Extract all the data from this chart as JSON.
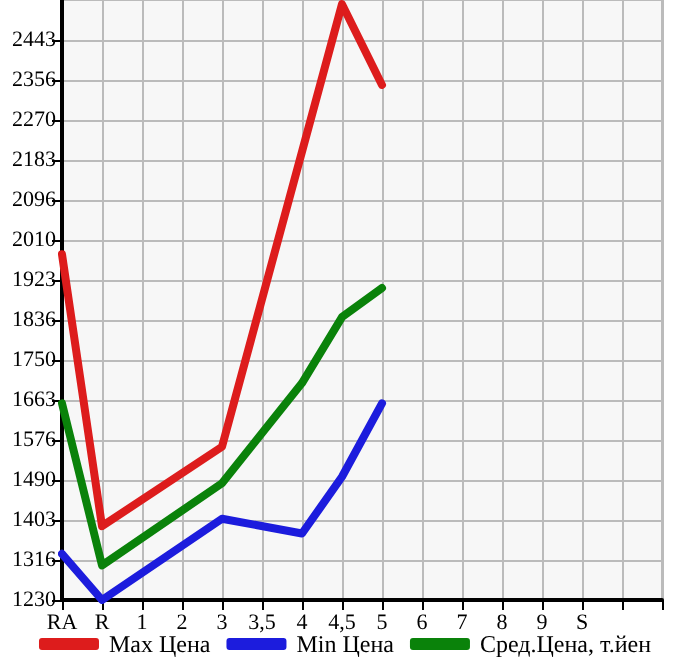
{
  "chart_data": {
    "type": "line",
    "categories": [
      "RA",
      "R",
      "1",
      "2",
      "3",
      "3,5",
      "4",
      "4,5",
      "5",
      "6",
      "7",
      "8",
      "9",
      "S",
      null,
      null
    ],
    "series": [
      {
        "name": "Max Цена",
        "color": "#dd1c1c",
        "values": [
          1979,
          1390,
          null,
          null,
          1562,
          null,
          null,
          2521,
          2346,
          null,
          null,
          null,
          null,
          null,
          null,
          null
        ]
      },
      {
        "name": "Min Цена",
        "color": "#1c1cdd",
        "values": [
          1330,
          1230,
          null,
          null,
          1406,
          null,
          1374,
          1497,
          1656,
          null,
          null,
          null,
          null,
          null,
          null,
          null
        ]
      },
      {
        "name": "Сред.Цена, т.йен",
        "color": "#0a820a",
        "values": [
          1656,
          1305,
          null,
          null,
          1483,
          null,
          1700,
          1843,
          1906,
          null,
          null,
          null,
          null,
          null,
          null,
          null
        ]
      }
    ],
    "ylim": [
      1230,
      2530
    ],
    "yticks": [
      1230,
      1316,
      1403,
      1490,
      1576,
      1663,
      1750,
      1836,
      1923,
      2010,
      2096,
      2183,
      2270,
      2356,
      2443
    ],
    "grid": true,
    "legend": "bottom",
    "marker": "none",
    "line_style": "solid"
  }
}
